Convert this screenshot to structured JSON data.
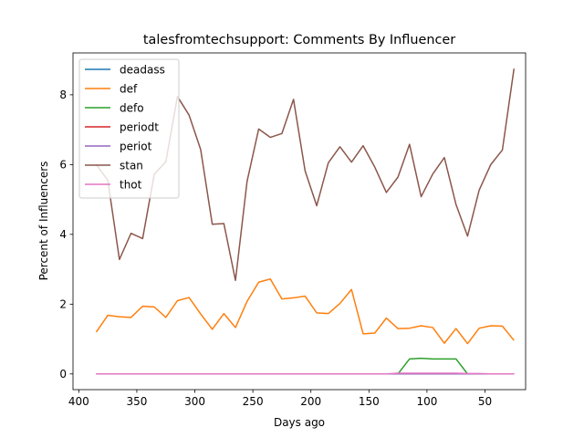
{
  "chart_data": {
    "type": "line",
    "title": "talesfromtechsupport: Comments By Influencer",
    "xlabel": "Days ago",
    "ylabel": "Percent of Influencers",
    "x_inverted": true,
    "xlim": [
      405,
      15
    ],
    "ylim": [
      -0.45,
      9.2
    ],
    "xticks": [
      400,
      350,
      300,
      250,
      200,
      150,
      100,
      50
    ],
    "yticks": [
      0,
      2,
      4,
      6,
      8
    ],
    "grid": false,
    "legend_position": "upper left",
    "x": [
      385,
      375,
      365,
      355,
      345,
      335,
      325,
      315,
      305,
      295,
      285,
      275,
      265,
      255,
      245,
      235,
      225,
      215,
      205,
      195,
      185,
      175,
      165,
      155,
      145,
      135,
      125,
      115,
      105,
      95,
      85,
      75,
      65,
      55,
      45,
      35,
      25
    ],
    "series": [
      {
        "name": "deadass",
        "color": "#1f77b4",
        "values": [
          0,
          0,
          0,
          0,
          0,
          0,
          0,
          0,
          0,
          0,
          0,
          0,
          0,
          0,
          0,
          0,
          0,
          0,
          0,
          0,
          0,
          0,
          0,
          0,
          0,
          0,
          0,
          0,
          0,
          0,
          0,
          0,
          0,
          0,
          0,
          0,
          0
        ]
      },
      {
        "name": "def",
        "color": "#ff7f0e",
        "values": [
          1.2,
          1.68,
          1.64,
          1.62,
          1.94,
          1.92,
          1.62,
          2.1,
          2.19,
          1.72,
          1.28,
          1.73,
          1.33,
          2.08,
          2.63,
          2.72,
          2.15,
          2.18,
          2.23,
          1.75,
          1.73,
          2.02,
          2.42,
          1.15,
          1.17,
          1.6,
          1.3,
          1.31,
          1.38,
          1.33,
          0.88,
          1.3,
          0.87,
          1.31,
          1.38,
          1.37,
          0.96
        ]
      },
      {
        "name": "defo",
        "color": "#2ca02c",
        "values": [
          0,
          0,
          0,
          0,
          0,
          0,
          0,
          0,
          0,
          0,
          0,
          0,
          0,
          0,
          0,
          0,
          0,
          0,
          0,
          0,
          0,
          0,
          0,
          0,
          0,
          0,
          0,
          0.43,
          0.45,
          0.43,
          0.43,
          0.43,
          0,
          0,
          0,
          0,
          0
        ]
      },
      {
        "name": "periodt",
        "color": "#d62728",
        "values": [
          0,
          0,
          0,
          0,
          0,
          0,
          0,
          0,
          0,
          0,
          0,
          0,
          0,
          0,
          0,
          0,
          0,
          0,
          0,
          0,
          0,
          0,
          0,
          0,
          0,
          0,
          0,
          0,
          0,
          0,
          0,
          0,
          0,
          0,
          0,
          0,
          0
        ]
      },
      {
        "name": "periot",
        "color": "#9467bd",
        "values": [
          0,
          0,
          0,
          0,
          0,
          0,
          0,
          0,
          0,
          0,
          0,
          0,
          0,
          0,
          0,
          0,
          0,
          0,
          0,
          0,
          0,
          0,
          0,
          0,
          0,
          0,
          0,
          0,
          0,
          0,
          0,
          0,
          0,
          0,
          0,
          0,
          0
        ]
      },
      {
        "name": "stan",
        "color": "#8c564b",
        "values": [
          6.0,
          5.55,
          3.28,
          4.03,
          3.88,
          5.72,
          6.08,
          7.95,
          7.42,
          6.43,
          4.29,
          4.31,
          2.68,
          5.52,
          7.02,
          6.78,
          6.89,
          7.87,
          5.82,
          4.82,
          6.05,
          6.51,
          6.07,
          6.54,
          5.93,
          5.2,
          5.64,
          6.58,
          5.08,
          5.73,
          6.2,
          4.86,
          3.95,
          5.27,
          6.0,
          6.42,
          8.75
        ]
      },
      {
        "name": "thot",
        "color": "#e377c2",
        "values": [
          0,
          0,
          0,
          0,
          0,
          0,
          0,
          0,
          0,
          0,
          0,
          0,
          0,
          0,
          0,
          0,
          0,
          0,
          0,
          0,
          0,
          0,
          0,
          0,
          0,
          0,
          0.02,
          0.02,
          0.02,
          0.02,
          0.02,
          0.02,
          0.01,
          0.01,
          0,
          0,
          0
        ]
      }
    ]
  }
}
